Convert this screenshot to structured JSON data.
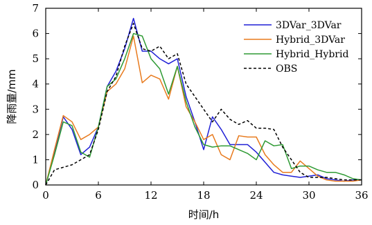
{
  "chart_data": {
    "type": "line",
    "xlabel": "时间/h",
    "ylabel": "降雨量/mm",
    "xlim": [
      0,
      36
    ],
    "ylim": [
      0,
      7
    ],
    "xticks": [
      0,
      6,
      12,
      18,
      24,
      30,
      36
    ],
    "yticks": [
      0,
      1,
      2,
      3,
      4,
      5,
      6,
      7
    ],
    "x": [
      0,
      1,
      2,
      3,
      4,
      5,
      6,
      7,
      8,
      9,
      10,
      11,
      12,
      13,
      14,
      15,
      16,
      17,
      18,
      19,
      20,
      21,
      22,
      23,
      24,
      25,
      26,
      27,
      28,
      29,
      30,
      31,
      32,
      33,
      34,
      35,
      36
    ],
    "grid": false,
    "legend_position": "top-right",
    "series": [
      {
        "name": "3DVar_3DVar",
        "color": "#1f1fd6",
        "dash": "solid",
        "values": [
          0,
          1.3,
          2.7,
          2.2,
          1.2,
          1.5,
          2.3,
          3.9,
          4.5,
          5.4,
          6.6,
          5.3,
          5.3,
          5.0,
          4.8,
          5.0,
          3.5,
          2.5,
          1.4,
          2.7,
          2.2,
          1.6,
          1.6,
          1.6,
          1.3,
          0.9,
          0.5,
          0.4,
          0.35,
          0.3,
          0.35,
          0.4,
          0.25,
          0.2,
          0.15,
          0.2,
          0.2
        ]
      },
      {
        "name": "Hybrid_3DVar",
        "color": "#e87a1d",
        "dash": "solid",
        "values": [
          0,
          1.4,
          2.75,
          2.5,
          1.8,
          2.0,
          2.3,
          3.7,
          4.0,
          4.6,
          5.9,
          4.05,
          4.35,
          4.2,
          3.4,
          4.7,
          3.1,
          2.5,
          1.8,
          2.0,
          1.2,
          1.0,
          1.95,
          1.9,
          1.9,
          1.2,
          0.8,
          0.5,
          0.5,
          0.95,
          0.65,
          0.35,
          0.2,
          0.15,
          0.15,
          0.15,
          0.2
        ]
      },
      {
        "name": "Hybrid_Hybrid",
        "color": "#2e9a33",
        "dash": "solid",
        "values": [
          0,
          1.2,
          2.5,
          2.35,
          1.3,
          1.1,
          2.3,
          3.9,
          4.2,
          5.0,
          6.0,
          5.9,
          5.0,
          4.6,
          3.6,
          4.7,
          3.3,
          2.3,
          1.6,
          1.5,
          1.55,
          1.55,
          1.4,
          1.25,
          1.0,
          1.75,
          1.55,
          1.6,
          0.65,
          0.75,
          0.75,
          0.6,
          0.5,
          0.5,
          0.4,
          0.25,
          0.2
        ]
      },
      {
        "name": "OBS",
        "color": "#000000",
        "dash": "dashed",
        "values": [
          0,
          0.6,
          0.7,
          0.8,
          1.0,
          1.2,
          2.2,
          3.7,
          4.3,
          5.5,
          6.4,
          5.4,
          5.3,
          5.5,
          5.0,
          5.2,
          4.0,
          3.5,
          3.0,
          2.5,
          3.0,
          2.6,
          2.4,
          2.55,
          2.25,
          2.25,
          2.2,
          1.5,
          1.0,
          0.5,
          0.3,
          0.3,
          0.3,
          0.25,
          0.2,
          0.2,
          0.2
        ]
      }
    ]
  }
}
